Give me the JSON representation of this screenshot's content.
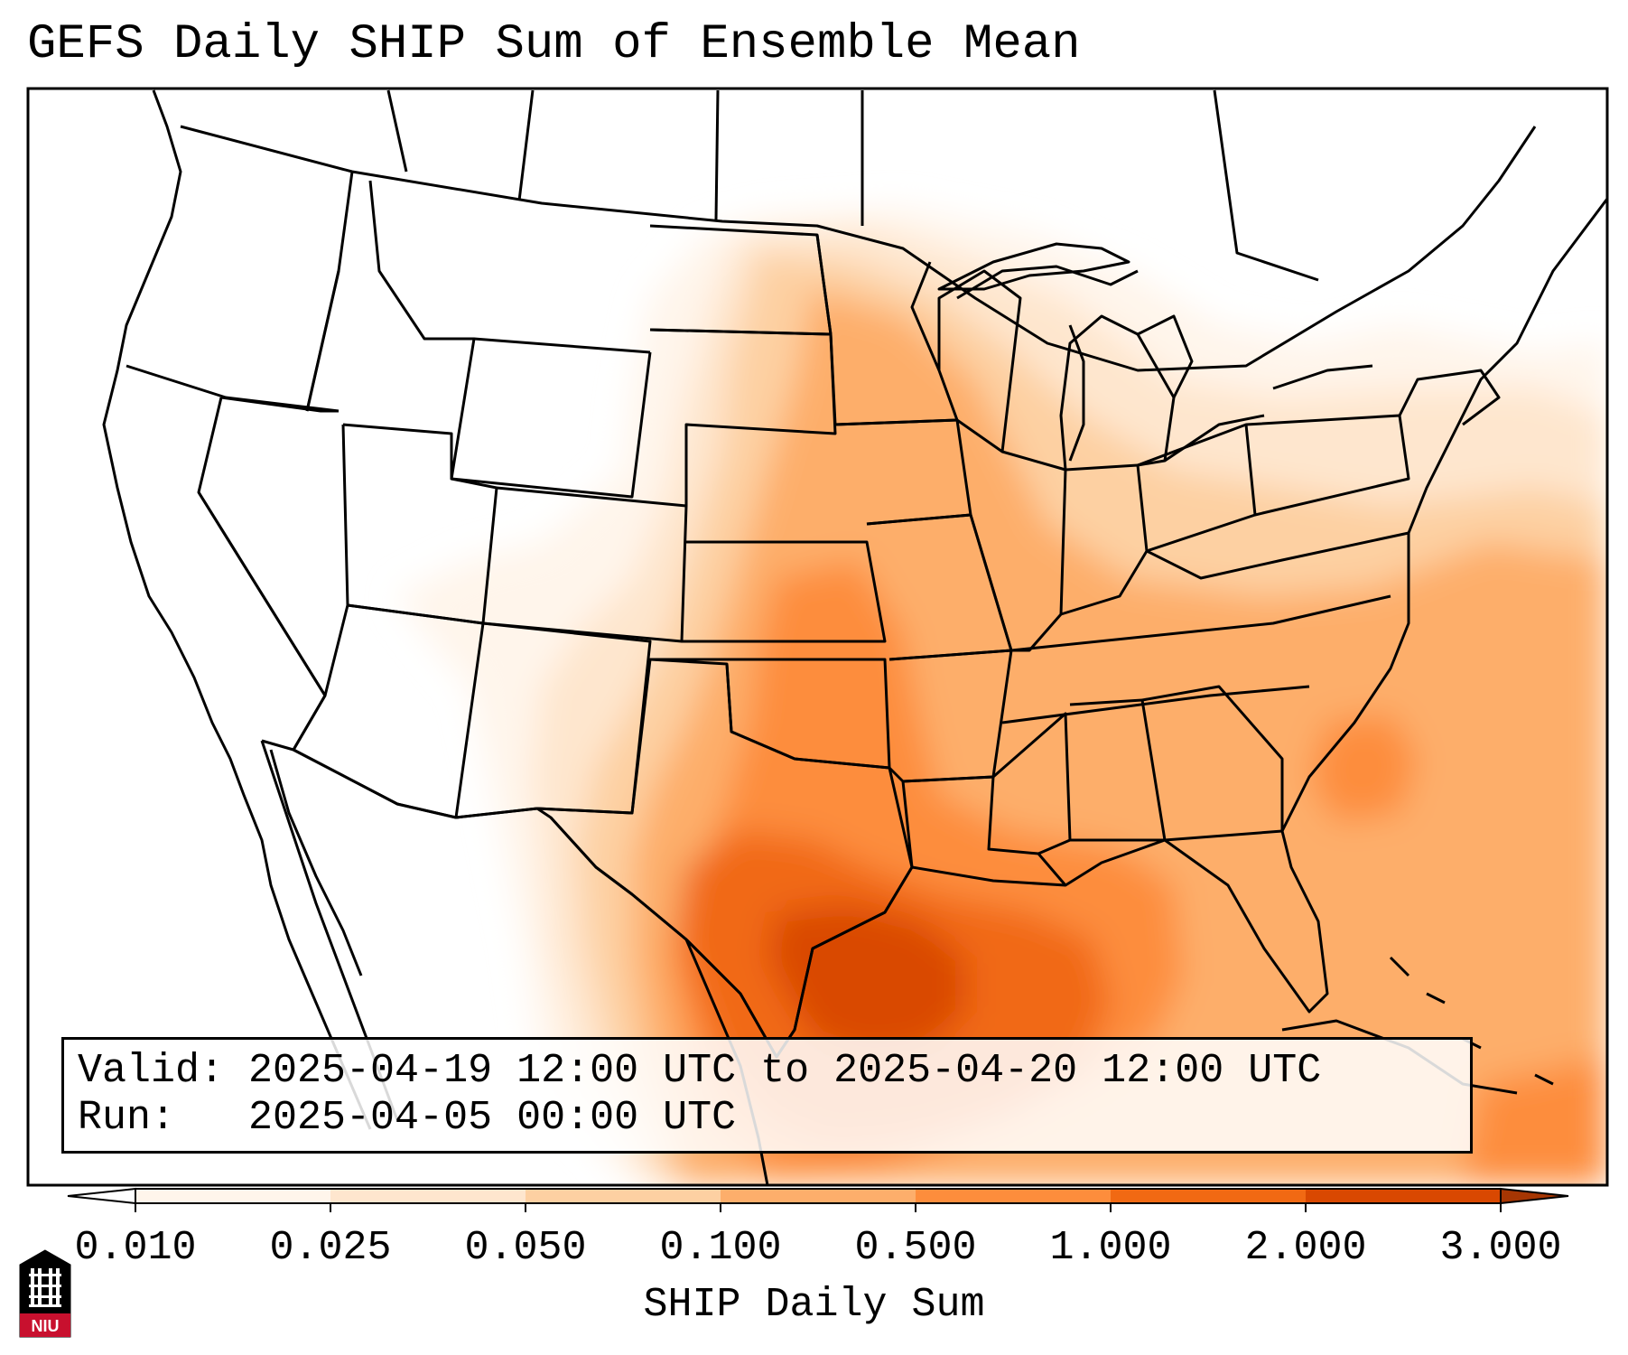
{
  "title": "GEFS Daily SHIP Sum of Ensemble Mean",
  "info": {
    "valid": "Valid: 2025-04-19 12:00 UTC to 2025-04-20 12:00 UTC",
    "run": "Run:   2025-04-05 00:00 UTC"
  },
  "colorbar": {
    "label": "SHIP Daily Sum",
    "ticks": [
      "0.010",
      "0.025",
      "0.050",
      "0.100",
      "0.500",
      "1.000",
      "2.000",
      "3.000"
    ],
    "colors": [
      "#fff5eb",
      "#fee6ce",
      "#fdd0a2",
      "#fdae6b",
      "#fd8d3c",
      "#f16913",
      "#d94801",
      "#a63603"
    ]
  },
  "logo": {
    "text": "NIU"
  }
}
